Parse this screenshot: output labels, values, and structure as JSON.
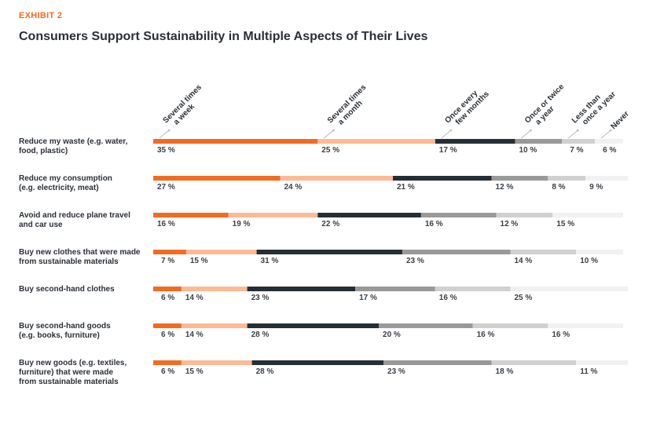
{
  "header": {
    "exhibit": "EXHIBIT 2",
    "title": "Consumers Support Sustainability in Multiple Aspects of Their Lives"
  },
  "chart_data": {
    "type": "bar",
    "orientation": "horizontal-stacked-100",
    "title": "Consumers Support Sustainability in Multiple Aspects of Their Lives",
    "series": [
      {
        "name": "Several times a week",
        "label_lines": [
          "Several times",
          "a week"
        ],
        "color": "#f26b21"
      },
      {
        "name": "Several times a month",
        "label_lines": [
          "Several times",
          "a month"
        ],
        "color": "#fdba94"
      },
      {
        "name": "Once every few months",
        "label_lines": [
          "Once every",
          "few months"
        ],
        "color": "#262e35"
      },
      {
        "name": "Once or twice a year",
        "label_lines": [
          "Once or twice",
          "a year"
        ],
        "color": "#999999"
      },
      {
        "name": "Less than once a year",
        "label_lines": [
          "Less than",
          "once a year"
        ],
        "color": "#d0d0d0"
      },
      {
        "name": "Never",
        "label_lines": [
          "Never"
        ],
        "color": "#f1f1f1"
      }
    ],
    "categories": [
      {
        "label_lines": [
          "Reduce my waste (e.g. water,",
          "food, plastic)"
        ],
        "values": [
          35,
          25,
          17,
          10,
          7,
          6
        ]
      },
      {
        "label_lines": [
          "Reduce my consumption",
          "(e.g. electricity, meat)"
        ],
        "values": [
          27,
          24,
          21,
          12,
          8,
          9
        ]
      },
      {
        "label_lines": [
          "Avoid and reduce plane travel",
          "and car use"
        ],
        "values": [
          16,
          19,
          22,
          16,
          12,
          15
        ]
      },
      {
        "label_lines": [
          "Buy new clothes that were made",
          "from sustainable materials"
        ],
        "values": [
          7,
          15,
          31,
          23,
          14,
          10
        ]
      },
      {
        "label_lines": [
          "Buy second-hand clothes"
        ],
        "values": [
          6,
          14,
          23,
          17,
          16,
          25
        ]
      },
      {
        "label_lines": [
          "Buy second-hand goods",
          "(e.g. books, furniture)"
        ],
        "values": [
          6,
          14,
          28,
          20,
          16,
          16
        ]
      },
      {
        "label_lines": [
          "Buy new goods (e.g. textiles,",
          "furniture) that were made",
          "from sustainable materials"
        ],
        "values": [
          6,
          15,
          28,
          23,
          18,
          11
        ]
      }
    ],
    "value_suffix": "%",
    "xlim": [
      0,
      100
    ],
    "legend": "top-annotations"
  }
}
